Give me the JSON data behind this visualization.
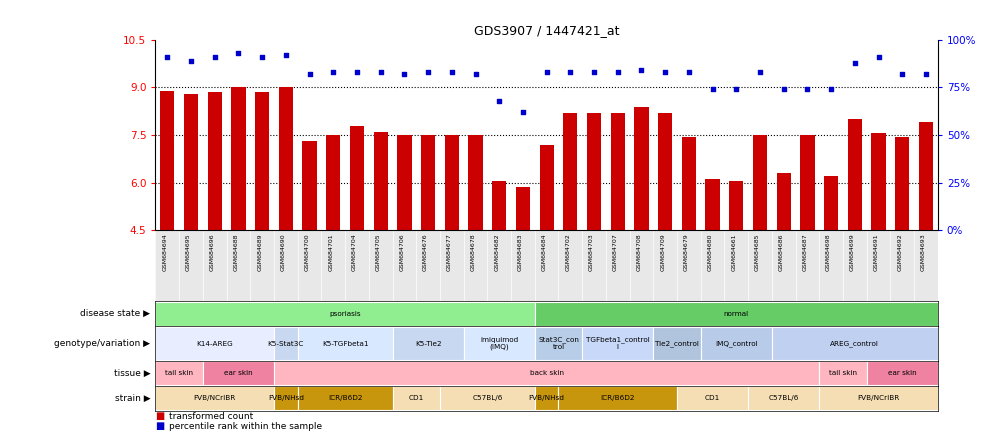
{
  "title": "GDS3907 / 1447421_at",
  "samples": [
    "GSM684694",
    "GSM684695",
    "GSM684696",
    "GSM684688",
    "GSM684689",
    "GSM684690",
    "GSM684700",
    "GSM684701",
    "GSM684704",
    "GSM684705",
    "GSM684706",
    "GSM684676",
    "GSM684677",
    "GSM684678",
    "GSM684682",
    "GSM684683",
    "GSM684684",
    "GSM684702",
    "GSM684703",
    "GSM684707",
    "GSM684708",
    "GSM684709",
    "GSM684679",
    "GSM684680",
    "GSM684661",
    "GSM684685",
    "GSM684686",
    "GSM684687",
    "GSM684698",
    "GSM684699",
    "GSM684691",
    "GSM684692",
    "GSM684693"
  ],
  "bar_values": [
    8.9,
    8.8,
    8.85,
    9.0,
    8.85,
    9.0,
    7.3,
    7.5,
    7.8,
    7.6,
    7.5,
    7.5,
    7.5,
    7.5,
    6.05,
    5.85,
    7.2,
    8.2,
    8.2,
    8.2,
    8.4,
    8.2,
    7.45,
    6.1,
    6.05,
    7.5,
    6.3,
    7.5,
    6.2,
    8.0,
    7.55,
    7.45,
    7.9
  ],
  "percentile_values": [
    91,
    89,
    91,
    93,
    91,
    92,
    82,
    83,
    83,
    83,
    82,
    83,
    83,
    82,
    68,
    62,
    83,
    83,
    83,
    83,
    84,
    83,
    83,
    74,
    74,
    83,
    74,
    74,
    74,
    88,
    91,
    82,
    82
  ],
  "ylim_left": [
    4.5,
    10.5
  ],
  "ylim_right": [
    0,
    100
  ],
  "yticks_left": [
    4.5,
    6.0,
    7.5,
    9.0,
    10.5
  ],
  "yticks_right": [
    0,
    25,
    50,
    75,
    100
  ],
  "ytick_labels_right": [
    "0%",
    "25%",
    "50%",
    "75%",
    "100%"
  ],
  "hlines": [
    9.0,
    7.5,
    6.0
  ],
  "bar_color": "#CC0000",
  "scatter_color": "#0000CC",
  "disease_state_rows": [
    {
      "label": "psoriasis",
      "start": 0,
      "end": 16,
      "color": "#90EE90"
    },
    {
      "label": "normal",
      "start": 16,
      "end": 33,
      "color": "#66CC66"
    }
  ],
  "genotype_rows": [
    {
      "label": "K14-AREG",
      "start": 0,
      "end": 5,
      "color": "#E8EEFF"
    },
    {
      "label": "K5-Stat3C",
      "start": 5,
      "end": 6,
      "color": "#C8D8F0"
    },
    {
      "label": "K5-TGFbeta1",
      "start": 6,
      "end": 10,
      "color": "#D8E8FF"
    },
    {
      "label": "K5-Tie2",
      "start": 10,
      "end": 13,
      "color": "#C8D8F0"
    },
    {
      "label": "imiquimod\n(IMQ)",
      "start": 13,
      "end": 16,
      "color": "#D8E8FF"
    },
    {
      "label": "Stat3C_con\ntrol",
      "start": 16,
      "end": 18,
      "color": "#B8CEE8"
    },
    {
      "label": "TGFbeta1_control\nl",
      "start": 18,
      "end": 21,
      "color": "#C8D8F8"
    },
    {
      "label": "Tie2_control",
      "start": 21,
      "end": 23,
      "color": "#B0C4DE"
    },
    {
      "label": "IMQ_control",
      "start": 23,
      "end": 26,
      "color": "#B8CCEA"
    },
    {
      "label": "AREG_control",
      "start": 26,
      "end": 33,
      "color": "#C0D0F0"
    }
  ],
  "tissue_rows": [
    {
      "label": "tail skin",
      "start": 0,
      "end": 2,
      "color": "#FFB6C1"
    },
    {
      "label": "ear skin",
      "start": 2,
      "end": 5,
      "color": "#EE82A0"
    },
    {
      "label": "back skin",
      "start": 5,
      "end": 28,
      "color": "#FFB6C1"
    },
    {
      "label": "tail skin",
      "start": 28,
      "end": 30,
      "color": "#FFB6C1"
    },
    {
      "label": "ear skin",
      "start": 30,
      "end": 33,
      "color": "#EE82A0"
    }
  ],
  "strain_rows": [
    {
      "label": "FVB/NCrIBR",
      "start": 0,
      "end": 5,
      "color": "#F5DEB3"
    },
    {
      "label": "FVB/NHsd",
      "start": 5,
      "end": 6,
      "color": "#C8960C"
    },
    {
      "label": "ICR/B6D2",
      "start": 6,
      "end": 10,
      "color": "#C8960C"
    },
    {
      "label": "CD1",
      "start": 10,
      "end": 12,
      "color": "#F5DEB3"
    },
    {
      "label": "C57BL/6",
      "start": 12,
      "end": 16,
      "color": "#F5DEB3"
    },
    {
      "label": "FVB/NHsd",
      "start": 16,
      "end": 17,
      "color": "#C8960C"
    },
    {
      "label": "ICR/B6D2",
      "start": 17,
      "end": 22,
      "color": "#C8960C"
    },
    {
      "label": "CD1",
      "start": 22,
      "end": 25,
      "color": "#F5DEB3"
    },
    {
      "label": "C57BL/6",
      "start": 25,
      "end": 28,
      "color": "#F5DEB3"
    },
    {
      "label": "FVB/NCrIBR",
      "start": 28,
      "end": 33,
      "color": "#F5DEB3"
    }
  ],
  "row_labels": [
    "disease state",
    "genotype/variation",
    "tissue",
    "strain"
  ],
  "legend_bar_label": "transformed count",
  "legend_scatter_label": "percentile rank within the sample",
  "fig_width": 10.03,
  "fig_height": 4.44,
  "dpi": 100
}
